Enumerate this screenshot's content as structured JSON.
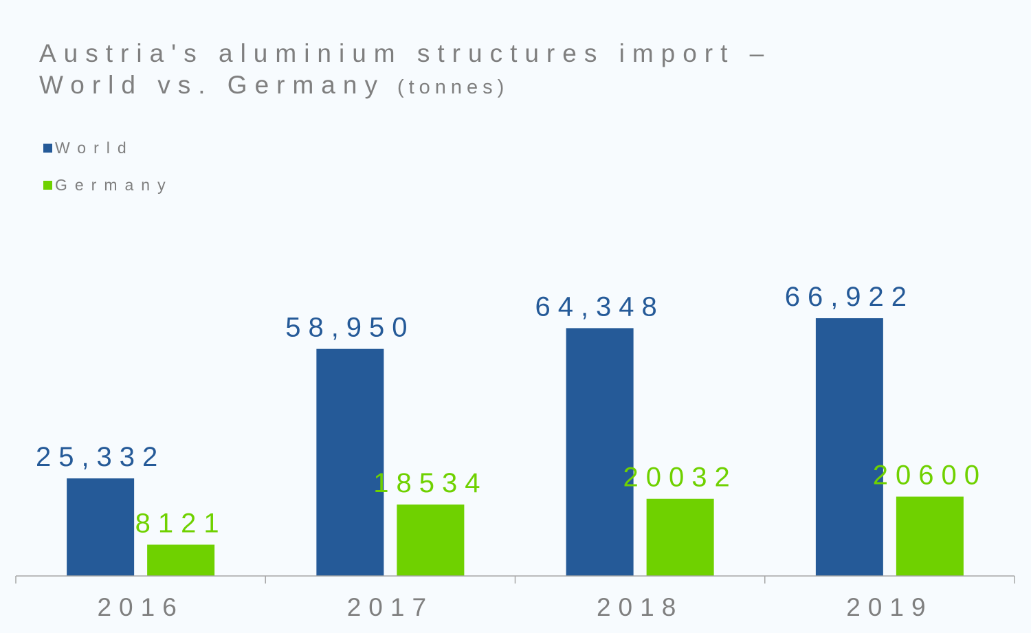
{
  "colors": {
    "world": "#255a98",
    "germany": "#6fd100",
    "text": "#7f7f7f",
    "axis": "#a6a6a6"
  },
  "chart_data": {
    "type": "bar",
    "title_line1": "Austria's aluminium structures import –",
    "title_line2": "World vs. Germany",
    "title_unit": "(tonnes)",
    "categories": [
      "2016",
      "2017",
      "2018",
      "2019"
    ],
    "series": [
      {
        "name": "World",
        "values": [
          25332,
          58950,
          64348,
          66922
        ],
        "labels": [
          "25,332",
          "58,950",
          "64,348",
          "66,922"
        ]
      },
      {
        "name": "Germany",
        "values": [
          8121,
          18534,
          20032,
          20600
        ],
        "labels": [
          "8121",
          "18534",
          "20032",
          "20600"
        ]
      }
    ],
    "ylim": [
      0,
      66922
    ],
    "grid": false,
    "legend_position": "top-left"
  }
}
